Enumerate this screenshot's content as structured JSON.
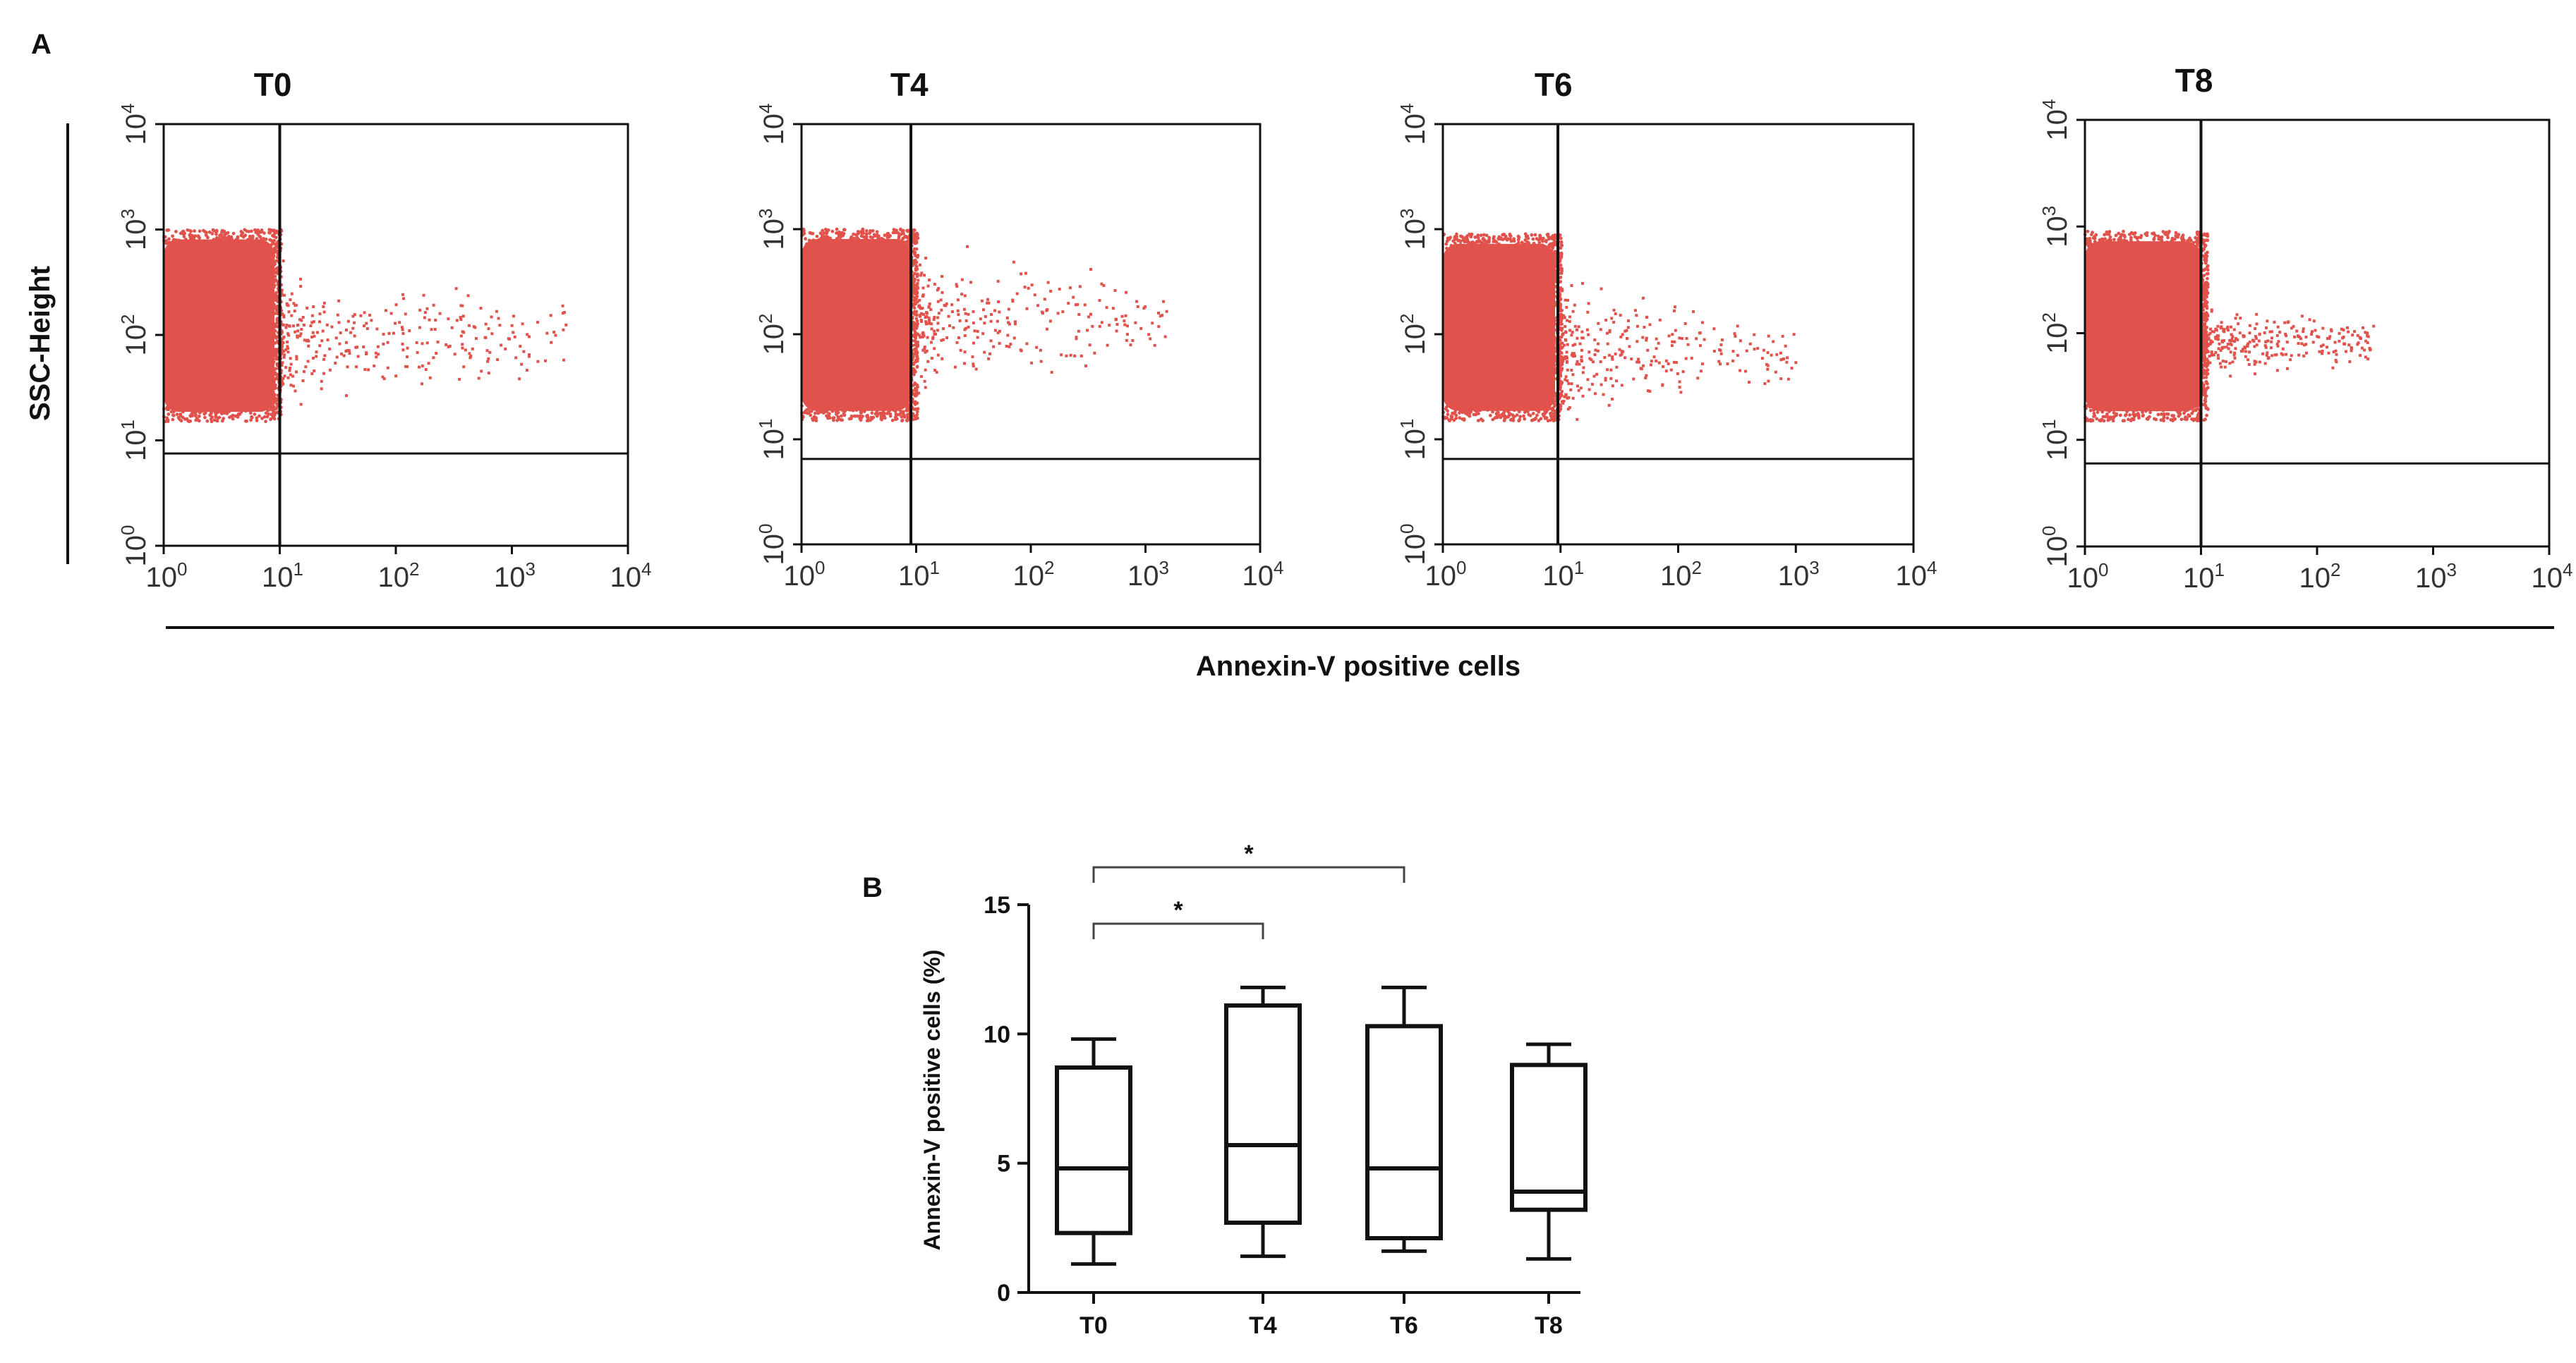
{
  "panel_a_label": "A",
  "panel_b_label": "B",
  "chart_data": [
    {
      "type": "scatter",
      "subtype": "flow-cytometry-dot-plots",
      "shared_ylabel": "SSC-Height",
      "shared_xlabel": "Annexin-V positive cells",
      "xscale": "log",
      "yscale": "log",
      "xlim": [
        1,
        10000
      ],
      "ylim": [
        1,
        10000
      ],
      "tick_base": "10",
      "tick_exponents": [
        "0",
        "1",
        "2",
        "3",
        "4"
      ],
      "dot_color": "#e0524b",
      "plots": [
        {
          "title": "T0",
          "gate_x": 10,
          "gate_y": 7.5,
          "cluster": {
            "x": [
              1,
              9
            ],
            "y": [
              15,
              1000
            ]
          },
          "scatter_x_max": 3000,
          "scatter_y": [
            15,
            600
          ]
        },
        {
          "title": "T4",
          "gate_x": 9,
          "gate_y": 6.5,
          "cluster": {
            "x": [
              1,
              9
            ],
            "y": [
              15,
              1000
            ]
          },
          "scatter_x_max": 1500,
          "scatter_y": [
            20,
            1000
          ]
        },
        {
          "title": "T6",
          "gate_x": 9.5,
          "gate_y": 6.5,
          "cluster": {
            "x": [
              1,
              9
            ],
            "y": [
              15,
              900
            ]
          },
          "scatter_x_max": 1000,
          "scatter_y": [
            10,
            500
          ]
        },
        {
          "title": "T8",
          "gate_x": 10,
          "gate_y": 6,
          "cluster": {
            "x": [
              1,
              10
            ],
            "y": [
              15,
              900
            ]
          },
          "scatter_x_max": 300,
          "scatter_y": [
            30,
            250
          ]
        }
      ]
    },
    {
      "type": "box",
      "ylabel": "Annexin-V positive cells (%)",
      "ylim": [
        0,
        15
      ],
      "yticks": [
        "0",
        "5",
        "10",
        "15"
      ],
      "categories": [
        "T0",
        "T4",
        "T6",
        "T8"
      ],
      "boxes": [
        {
          "min": 1.1,
          "q1": 2.3,
          "median": 4.8,
          "q3": 8.7,
          "max": 9.8
        },
        {
          "min": 1.4,
          "q1": 2.7,
          "median": 5.7,
          "q3": 11.1,
          "max": 11.8
        },
        {
          "min": 1.6,
          "q1": 2.1,
          "median": 4.8,
          "q3": 10.3,
          "max": 11.8
        },
        {
          "min": 1.3,
          "q1": 3.2,
          "median": 3.9,
          "q3": 8.8,
          "max": 9.6
        }
      ],
      "significance": [
        {
          "from": "T0",
          "to": "T4",
          "label": "*"
        },
        {
          "from": "T0",
          "to": "T6",
          "label": "*"
        }
      ]
    }
  ]
}
